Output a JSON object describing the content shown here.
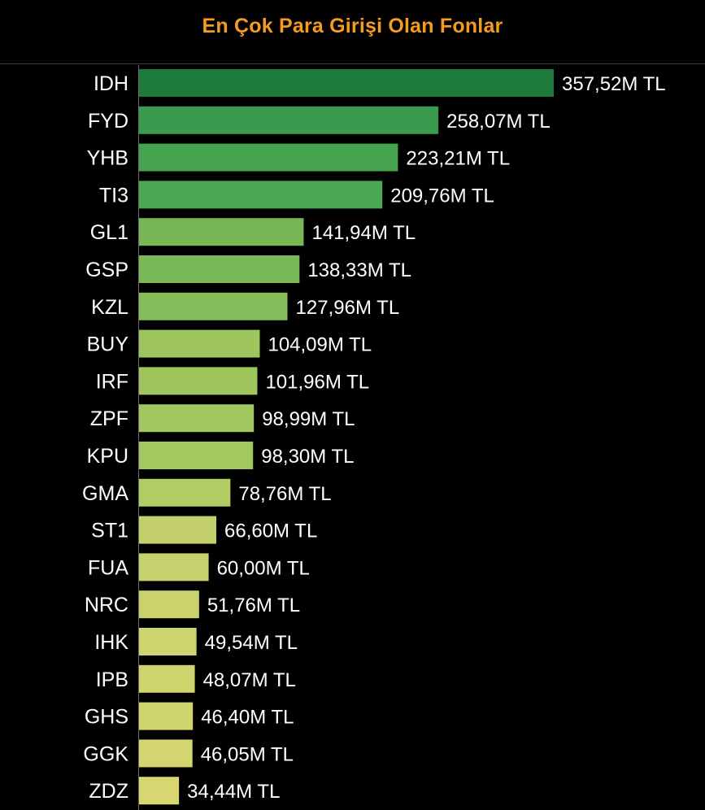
{
  "chart_data": {
    "type": "bar",
    "orientation": "horizontal",
    "title": "En Çok Para Girişi Olan Fonlar",
    "title_color": "#f39c1e",
    "unit_suffix": "M TL",
    "categories": [
      "IDH",
      "FYD",
      "YHB",
      "TI3",
      "GL1",
      "GSP",
      "KZL",
      "BUY",
      "IRF",
      "ZPF",
      "KPU",
      "GMA",
      "ST1",
      "FUA",
      "NRC",
      "IHK",
      "IPB",
      "GHS",
      "GGK",
      "ZDZ"
    ],
    "values": [
      357.52,
      258.07,
      223.21,
      209.76,
      141.94,
      138.33,
      127.96,
      104.09,
      101.96,
      98.99,
      98.3,
      78.76,
      66.6,
      60.0,
      51.76,
      49.54,
      48.07,
      46.4,
      46.05,
      34.44
    ],
    "value_labels": [
      "357,52M TL",
      "258,07M TL",
      "223,21M TL",
      "209,76M TL",
      "141,94M TL",
      "138,33M TL",
      "127,96M TL",
      "104,09M TL",
      "101,96M TL",
      "98,99M TL",
      "98,30M TL",
      "78,76M TL",
      "66,60M TL",
      "60,00M TL",
      "51,76M TL",
      "49,54M TL",
      "48,07M TL",
      "46,40M TL",
      "46,05M TL",
      "34,44M TL"
    ],
    "bar_colors": [
      "#1e7a3a",
      "#3a9a4e",
      "#45a24f",
      "#4ba853",
      "#77b556",
      "#7ab858",
      "#85bc5a",
      "#9ec55e",
      "#9fc55f",
      "#a3c760",
      "#a4c860",
      "#b2cc64",
      "#c2cf6a",
      "#c6d06c",
      "#cbd26d",
      "#cdd36e",
      "#cfd46f",
      "#d1d56f",
      "#d2d570",
      "#d8d670"
    ],
    "background": "#000000",
    "label_color": "#ffffff",
    "grid": false,
    "legend": "none"
  }
}
